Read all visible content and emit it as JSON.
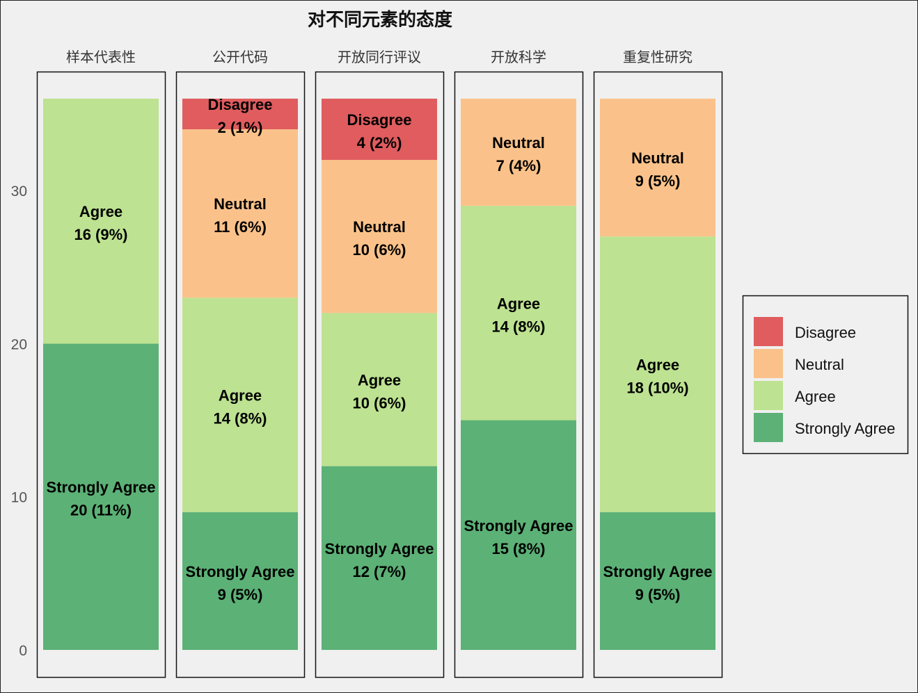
{
  "chart_data": {
    "type": "bar",
    "stacked": true,
    "title": "对不同元素的态度",
    "xlabel": "",
    "ylabel": "",
    "ylim": [
      0,
      36
    ],
    "yticks": [
      0,
      10,
      20,
      30
    ],
    "grid": false,
    "legend_position": "right",
    "categories": [
      "样本代表性",
      "公开代码",
      "开放同行评议",
      "开放科学",
      "重复性研究"
    ],
    "series": [
      {
        "name": "Strongly Agree",
        "color": "#5cb176",
        "values": [
          20,
          9,
          12,
          15,
          9
        ],
        "labels": [
          "20 (11%)",
          "9 (5%)",
          "12 (7%)",
          "15 (8%)",
          "9 (5%)"
        ]
      },
      {
        "name": "Agree",
        "color": "#bde291",
        "values": [
          16,
          14,
          10,
          14,
          18
        ],
        "labels": [
          "16 (9%)",
          "14 (8%)",
          "10 (6%)",
          "14 (8%)",
          "18 (10%)"
        ]
      },
      {
        "name": "Neutral",
        "color": "#fac28a",
        "values": [
          0,
          11,
          10,
          7,
          9
        ],
        "labels": [
          "",
          "11 (6%)",
          "10 (6%)",
          "7 (4%)",
          "9 (5%)"
        ]
      },
      {
        "name": "Disagree",
        "color": "#e05c5e",
        "values": [
          0,
          2,
          4,
          0,
          0
        ],
        "labels": [
          "",
          "2 (1%)",
          "4 (2%)",
          "",
          ""
        ]
      }
    ],
    "legend_order": [
      "Disagree",
      "Neutral",
      "Agree",
      "Strongly Agree"
    ]
  }
}
